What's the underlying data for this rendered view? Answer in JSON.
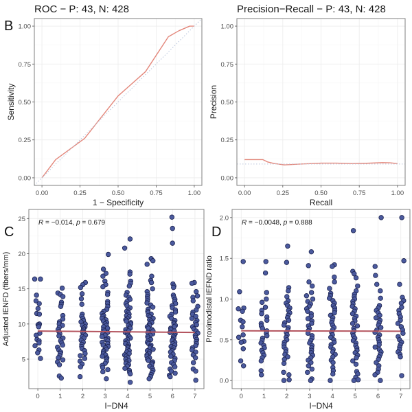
{
  "panel_labels": {
    "B": "B",
    "C": "C",
    "D": "D"
  },
  "colors": {
    "curve": "#e3877b",
    "diagonal": "#b8c4dc",
    "point_fill": "#4b5a9e",
    "point_stroke": "#1c2350",
    "regression": "#b4545e"
  },
  "chart_data": [
    {
      "id": "roc",
      "type": "line",
      "title": "ROC − P: 43, N: 428",
      "xlabel": "1 − Specificity",
      "ylabel": "Sensitivity",
      "xlim": [
        -0.05,
        1.05
      ],
      "ylim": [
        -0.05,
        1.05
      ],
      "xticks": [
        "0.00",
        "0.25",
        "0.50",
        "0.75",
        "1.00"
      ],
      "yticks": [
        "0.00",
        "0.25",
        "0.50",
        "0.75",
        "1.00"
      ],
      "grid": true,
      "series": [
        {
          "name": "ROC",
          "style": "solid",
          "x": [
            0,
            0.09,
            0.28,
            0.5,
            0.68,
            0.83,
            0.9,
            0.97,
            1.0
          ],
          "y": [
            0,
            0.12,
            0.26,
            0.54,
            0.7,
            0.93,
            0.97,
            1.0,
            1.0
          ]
        },
        {
          "name": "chance",
          "style": "dotted",
          "x": [
            -0.05,
            1.05
          ],
          "y": [
            -0.05,
            1.05
          ]
        }
      ]
    },
    {
      "id": "pr",
      "type": "line",
      "title": "Precision−Recall − P: 43, N: 428",
      "xlabel": "Recall",
      "ylabel": "Precision",
      "xlim": [
        -0.05,
        1.05
      ],
      "ylim": [
        -0.05,
        1.05
      ],
      "xticks": [
        "0.00",
        "0.25",
        "0.50",
        "0.75",
        "1.00"
      ],
      "yticks": [
        "0.00",
        "0.25",
        "0.50",
        "0.75",
        "1.00"
      ],
      "grid": true,
      "series": [
        {
          "name": "PR",
          "style": "solid",
          "x": [
            0,
            0.12,
            0.15,
            0.19,
            0.26,
            0.35,
            0.5,
            0.6,
            0.7,
            0.8,
            0.9,
            0.95,
            1.0
          ],
          "y": [
            0.12,
            0.12,
            0.105,
            0.095,
            0.085,
            0.09,
            0.097,
            0.097,
            0.094,
            0.096,
            0.1,
            0.099,
            0.094
          ]
        },
        {
          "name": "baseline",
          "style": "dotted",
          "x": [
            -0.05,
            1.05
          ],
          "y": [
            0.091,
            0.091
          ]
        }
      ]
    },
    {
      "id": "ienfd",
      "type": "scatter",
      "title": "",
      "xlabel": "I−DN4",
      "ylabel": "Adjusted IENFD (fibers/mm)",
      "annotation": {
        "R_label": "R",
        "R": "−0.014",
        "p_label": "p",
        "p": "0.679"
      },
      "xlim": [
        -0.4,
        7.4
      ],
      "ylim": [
        0.8,
        26.3
      ],
      "xticks": [
        "0",
        "1",
        "2",
        "3",
        "4",
        "5",
        "6",
        "7"
      ],
      "yticks": [
        "5",
        "10",
        "15",
        "20",
        "25"
      ],
      "ytick_values": [
        5,
        10,
        15,
        20,
        25
      ],
      "grid": true,
      "regression": {
        "x": [
          0,
          7
        ],
        "y": [
          9.0,
          8.8
        ]
      },
      "groups": [
        {
          "x": 0,
          "y": [
            16.4,
            16.4,
            14.1,
            13.3,
            12.9,
            12.2,
            11.5,
            11.4,
            10.0,
            9.9,
            9.8,
            9.6,
            8.7,
            8.4,
            7.8,
            7.6,
            7.3,
            6.9,
            6.3,
            5.9,
            5.1
          ]
        },
        {
          "x": 1,
          "y": [
            15.1,
            14.4,
            14.2,
            13.9,
            13.1,
            12.8,
            12.5,
            11.2,
            10.7,
            10.3,
            10.0,
            9.8,
            9.5,
            9.2,
            8.9,
            8.6,
            8.3,
            8.0,
            7.6,
            7.3,
            7.0,
            6.7,
            6.3,
            6.0,
            5.8,
            5.5,
            5.2,
            4.9,
            4.6,
            4.2,
            2.6,
            2.3
          ]
        },
        {
          "x": 2,
          "y": [
            15.9,
            15.6,
            15.2,
            14.3,
            13.6,
            12.8,
            11.4,
            11.1,
            10.8,
            10.5,
            10.3,
            10.0,
            9.8,
            9.6,
            9.4,
            9.2,
            9.0,
            8.8,
            8.6,
            8.4,
            8.2,
            8.0,
            7.7,
            7.4,
            7.1,
            6.8,
            6.5,
            6.2,
            5.8,
            5.5,
            5.1,
            4.7,
            4.3,
            3.9,
            2.5
          ]
        },
        {
          "x": 3,
          "y": [
            19.9,
            17.8,
            17.2,
            16.8,
            16.1,
            15.6,
            15.3,
            14.5,
            14.2,
            13.2,
            12.9,
            12.5,
            12.1,
            11.8,
            11.5,
            11.2,
            11.0,
            10.8,
            10.6,
            10.4,
            10.2,
            10.0,
            9.8,
            9.6,
            9.4,
            9.2,
            9.0,
            8.8,
            8.6,
            8.4,
            8.2,
            8.0,
            7.8,
            7.6,
            7.4,
            7.2,
            7.0,
            6.8,
            6.6,
            6.4,
            6.2,
            6.0,
            5.8,
            5.6,
            5.4,
            5.2,
            5.0,
            4.7,
            4.4,
            4.1,
            3.8,
            3.5,
            3.2,
            2.2
          ]
        },
        {
          "x": 4,
          "y": [
            22.1,
            20.8,
            17.4,
            17.1,
            16.1,
            15.8,
            15.4,
            14.5,
            14.1,
            13.8,
            13.5,
            13.2,
            12.9,
            12.6,
            12.3,
            12.0,
            11.8,
            11.6,
            11.4,
            11.2,
            11.0,
            10.8,
            10.6,
            10.4,
            10.2,
            10.0,
            9.8,
            9.6,
            9.4,
            9.2,
            9.0,
            8.8,
            8.6,
            8.4,
            8.2,
            8.0,
            7.8,
            7.6,
            7.4,
            7.2,
            7.0,
            6.8,
            6.6,
            6.4,
            6.2,
            6.0,
            5.8,
            5.6,
            5.4,
            5.2,
            5.0,
            4.8,
            4.6,
            4.4,
            4.2,
            4.0,
            3.7,
            3.4,
            3.1,
            2.9,
            1.7
          ]
        },
        {
          "x": 5,
          "y": [
            19.3,
            19.0,
            18.5,
            16.8,
            16.2,
            15.9,
            15.0,
            14.6,
            14.2,
            13.9,
            13.6,
            13.3,
            13.0,
            12.7,
            12.4,
            12.1,
            11.8,
            11.6,
            11.4,
            11.2,
            11.0,
            10.8,
            10.6,
            10.4,
            10.2,
            10.0,
            9.8,
            9.6,
            9.4,
            9.2,
            9.0,
            8.8,
            8.6,
            8.4,
            8.2,
            8.0,
            7.8,
            7.6,
            7.4,
            7.2,
            7.0,
            6.8,
            6.6,
            6.4,
            6.2,
            6.0,
            5.8,
            5.6,
            5.4,
            5.2,
            5.0,
            4.8,
            4.6,
            4.4,
            4.2,
            4.0,
            3.7,
            3.4,
            3.1,
            2.8,
            2.5,
            2.2
          ]
        },
        {
          "x": 6,
          "y": [
            25.2,
            23.6,
            21.5,
            15.7,
            15.4,
            15.2,
            14.1,
            13.8,
            13.5,
            13.2,
            12.9,
            12.6,
            12.3,
            12.0,
            11.7,
            11.4,
            11.1,
            10.8,
            10.5,
            10.2,
            10.0,
            9.8,
            9.6,
            9.4,
            9.2,
            9.0,
            8.8,
            8.6,
            8.4,
            8.2,
            8.0,
            7.8,
            7.6,
            7.4,
            7.2,
            7.0,
            6.8,
            6.6,
            6.4,
            6.2,
            6.0,
            5.7,
            5.4,
            5.1,
            4.8,
            4.5,
            4.2,
            3.9,
            3.6,
            3.3,
            3.0,
            2.7,
            2.5
          ]
        },
        {
          "x": 7,
          "y": [
            15.9,
            15.8,
            14.6,
            14.0,
            13.8,
            13.3,
            12.5,
            12.0,
            11.7,
            11.4,
            11.1,
            10.8,
            10.5,
            10.2,
            9.9,
            9.6,
            9.3,
            9.0,
            8.7,
            8.4,
            8.1,
            7.8,
            7.5,
            7.2,
            6.9,
            6.6,
            6.3,
            6.0,
            5.6,
            5.2,
            4.5,
            3.6,
            3.3,
            2.0
          ]
        }
      ]
    },
    {
      "id": "ratio",
      "type": "scatter",
      "title": "",
      "xlabel": "I−DN4",
      "ylabel": "Proximodistal IEFND ratio",
      "annotation": {
        "R_label": "R",
        "R": "−0.0048",
        "p_label": "p",
        "p": "0.888"
      },
      "xlim": [
        -0.4,
        7.4
      ],
      "ylim": [
        -0.1,
        2.1
      ],
      "xticks": [
        "0",
        "1",
        "2",
        "3",
        "4",
        "5",
        "6",
        "7"
      ],
      "yticks": [
        "0.0",
        "0.5",
        "1.0",
        "1.5",
        "2.0"
      ],
      "ytick_values": [
        0,
        0.5,
        1.0,
        1.5,
        2.0
      ],
      "grid": true,
      "regression": {
        "x": [
          0,
          7
        ],
        "y": [
          0.61,
          0.605
        ]
      },
      "groups": [
        {
          "x": 0,
          "y": [
            1.46,
            1.09,
            0.89,
            0.88,
            0.85,
            0.74,
            0.72,
            0.66,
            0.56,
            0.53,
            0.48,
            0.47,
            0.39,
            0.24,
            0.18
          ]
        },
        {
          "x": 1,
          "y": [
            1.46,
            1.32,
            1.08,
            1.0,
            0.96,
            0.9,
            0.86,
            0.82,
            0.78,
            0.74,
            0.7,
            0.67,
            0.64,
            0.61,
            0.58,
            0.55,
            0.52,
            0.49,
            0.46,
            0.43,
            0.4,
            0.37,
            0.34,
            0.31,
            0.28,
            0.24,
            0.12,
            0.07
          ]
        },
        {
          "x": 2,
          "y": [
            1.65,
            1.45,
            1.14,
            1.1,
            1.03,
            0.98,
            0.95,
            0.92,
            0.89,
            0.86,
            0.83,
            0.8,
            0.77,
            0.74,
            0.71,
            0.68,
            0.65,
            0.62,
            0.59,
            0.56,
            0.53,
            0.5,
            0.47,
            0.44,
            0.41,
            0.38,
            0.35,
            0.32,
            0.29,
            0.26,
            0.21,
            0.1,
            0.07,
            0.01,
            0.0
          ]
        },
        {
          "x": 3,
          "y": [
            1.58,
            1.41,
            1.21,
            1.16,
            1.08,
            1.04,
            1.0,
            0.97,
            0.94,
            0.91,
            0.88,
            0.85,
            0.82,
            0.79,
            0.76,
            0.73,
            0.7,
            0.67,
            0.64,
            0.61,
            0.58,
            0.55,
            0.52,
            0.49,
            0.46,
            0.43,
            0.4,
            0.37,
            0.34,
            0.31,
            0.28,
            0.25,
            0.22,
            0.18,
            0.14,
            0.1,
            0.02,
            0.0
          ]
        },
        {
          "x": 4,
          "y": [
            1.42,
            1.4,
            1.27,
            1.21,
            1.13,
            1.07,
            1.04,
            1.01,
            0.98,
            0.95,
            0.92,
            0.89,
            0.86,
            0.83,
            0.8,
            0.77,
            0.74,
            0.71,
            0.68,
            0.65,
            0.62,
            0.59,
            0.56,
            0.53,
            0.5,
            0.47,
            0.44,
            0.41,
            0.38,
            0.35,
            0.32,
            0.29,
            0.25,
            0.22,
            0.16,
            0.12,
            0.08,
            0.0
          ]
        },
        {
          "x": 5,
          "y": [
            1.84,
            1.34,
            1.31,
            1.26,
            1.16,
            1.1,
            1.06,
            1.03,
            1.0,
            0.97,
            0.94,
            0.91,
            0.88,
            0.85,
            0.82,
            0.79,
            0.76,
            0.73,
            0.7,
            0.67,
            0.64,
            0.61,
            0.58,
            0.55,
            0.52,
            0.49,
            0.46,
            0.43,
            0.4,
            0.37,
            0.34,
            0.31,
            0.28,
            0.24,
            0.2,
            0.11,
            0.08,
            0.04,
            0.01,
            0.0
          ]
        },
        {
          "x": 6,
          "y": [
            2.0,
            1.4,
            1.29,
            1.18,
            1.1,
            1.01,
            0.92,
            0.89,
            0.86,
            0.83,
            0.8,
            0.77,
            0.74,
            0.71,
            0.68,
            0.65,
            0.62,
            0.59,
            0.56,
            0.53,
            0.5,
            0.47,
            0.44,
            0.41,
            0.38,
            0.35,
            0.32,
            0.29,
            0.26,
            0.22,
            0.18,
            0.14,
            0.1,
            0.07,
            0.0
          ]
        },
        {
          "x": 7,
          "y": [
            2.0,
            1.47,
            1.18,
            1.02,
            0.98,
            0.95,
            0.9,
            0.86,
            0.82,
            0.78,
            0.74,
            0.7,
            0.66,
            0.62,
            0.58,
            0.54,
            0.5,
            0.47,
            0.44,
            0.41,
            0.38,
            0.35,
            0.32,
            0.29,
            0.06
          ]
        }
      ]
    }
  ]
}
